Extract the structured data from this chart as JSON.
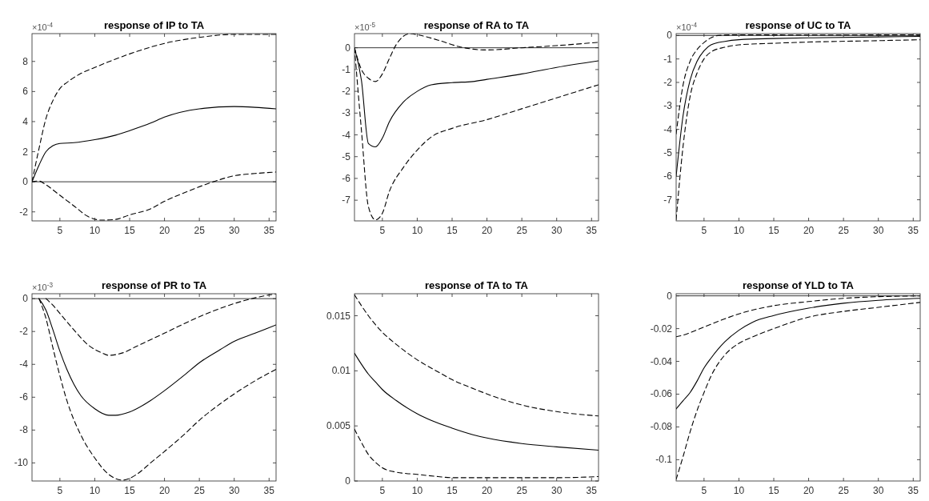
{
  "chart_data": [
    {
      "type": "line",
      "title": "response of IP to TA",
      "annotations": [
        "×10$^{-4}$"
      ],
      "xlim": [
        1,
        36
      ],
      "xticks": [
        5,
        10,
        15,
        20,
        25,
        30,
        35
      ],
      "ylim": [
        -2.6,
        9.85
      ],
      "yticks": [
        -2,
        0,
        2,
        4,
        6,
        8
      ],
      "ref_lines": [
        {
          "axis": "y",
          "value": 0,
          "color": "#000000",
          "line_style": "solid"
        }
      ],
      "series": [
        {
          "color": "#000000",
          "line_style": "solid",
          "x": [
            1,
            2,
            3,
            4,
            5,
            7,
            10,
            13,
            15,
            18,
            20,
            25,
            30,
            33,
            36
          ],
          "values": [
            0,
            1.1,
            2.0,
            2.4,
            2.55,
            2.6,
            2.8,
            3.1,
            3.4,
            3.9,
            4.3,
            4.85,
            5.0,
            4.95,
            4.85
          ]
        },
        {
          "color": "#000000",
          "line_style": "dashed",
          "x": [
            1,
            2,
            3,
            4,
            5,
            6,
            8,
            10,
            15,
            20,
            25,
            30,
            36
          ],
          "values": [
            0,
            2.2,
            4.2,
            5.4,
            6.2,
            6.6,
            7.2,
            7.6,
            8.5,
            9.2,
            9.6,
            9.8,
            9.8
          ]
        },
        {
          "color": "#000000",
          "line_style": "dashed",
          "x": [
            1,
            2,
            3,
            5,
            7,
            9,
            11,
            13,
            15,
            18,
            20,
            23,
            27,
            30,
            33,
            36
          ],
          "values": [
            0,
            0.05,
            -0.2,
            -0.9,
            -1.6,
            -2.3,
            -2.55,
            -2.5,
            -2.2,
            -1.8,
            -1.3,
            -0.7,
            0,
            0.4,
            0.55,
            0.65
          ]
        }
      ]
    },
    {
      "type": "line",
      "title": "response of RA to TA",
      "annotations": [
        "×10$^{-5}$"
      ],
      "xlim": [
        1,
        36
      ],
      "xticks": [
        5,
        10,
        15,
        20,
        25,
        30,
        35
      ],
      "ylim": [
        -7.95,
        0.65
      ],
      "yticks": [
        -7,
        -6,
        -5,
        -4,
        -3,
        -2,
        -1,
        0
      ],
      "ref_lines": [
        {
          "axis": "y",
          "value": 0,
          "color": "#000000",
          "line_style": "solid"
        }
      ],
      "series": [
        {
          "color": "#000000",
          "line_style": "solid",
          "x": [
            1,
            2,
            3,
            4,
            5,
            6,
            8,
            10,
            12,
            15,
            18,
            20,
            25,
            30,
            36
          ],
          "values": [
            0,
            -1.5,
            -4.4,
            -4.55,
            -4.15,
            -3.4,
            -2.5,
            -2.0,
            -1.7,
            -1.6,
            -1.55,
            -1.45,
            -1.2,
            -0.9,
            -0.6
          ]
        },
        {
          "color": "#000000",
          "line_style": "dashed",
          "x": [
            1,
            2,
            3,
            4,
            5,
            6,
            7,
            9,
            10,
            13,
            16,
            20,
            25,
            30,
            36
          ],
          "values": [
            0,
            -1.0,
            -1.4,
            -1.55,
            -1.2,
            -0.5,
            0.15,
            0.65,
            0.6,
            0.35,
            0.05,
            -0.1,
            0,
            0.1,
            0.25
          ]
        },
        {
          "color": "#000000",
          "line_style": "dashed",
          "x": [
            1,
            2,
            3,
            4,
            5,
            6,
            8,
            10,
            12,
            15,
            20,
            25,
            30,
            36
          ],
          "values": [
            0,
            -3.8,
            -7.3,
            -7.9,
            -7.6,
            -6.6,
            -5.5,
            -4.7,
            -4.1,
            -3.7,
            -3.3,
            -2.8,
            -2.3,
            -1.7
          ]
        }
      ]
    },
    {
      "type": "line",
      "title": "response of UC to TA",
      "annotations": [
        "×10$^{-4}$"
      ],
      "xlim": [
        1,
        36
      ],
      "xticks": [
        5,
        10,
        15,
        20,
        25,
        30,
        35
      ],
      "ylim": [
        -7.9,
        0.08
      ],
      "yticks": [
        -7,
        -6,
        -5,
        -4,
        -3,
        -2,
        -1,
        0
      ],
      "ref_lines": [
        {
          "axis": "y",
          "value": 0,
          "color": "#000000",
          "line_style": "solid"
        }
      ],
      "series": [
        {
          "color": "#000000",
          "line_style": "solid",
          "x": [
            1,
            2,
            3,
            4,
            5,
            6,
            8,
            10,
            15,
            20,
            30,
            36
          ],
          "values": [
            -6.0,
            -3.4,
            -1.9,
            -1.1,
            -0.65,
            -0.4,
            -0.25,
            -0.18,
            -0.13,
            -0.1,
            -0.06,
            -0.04
          ]
        },
        {
          "color": "#000000",
          "line_style": "dashed",
          "x": [
            1,
            2,
            3,
            4,
            5,
            6,
            7,
            10,
            20,
            36
          ],
          "values": [
            -4.2,
            -2.1,
            -1.1,
            -0.6,
            -0.3,
            -0.1,
            0.0,
            0.03,
            0.02,
            0.03
          ]
        },
        {
          "color": "#000000",
          "line_style": "dashed",
          "x": [
            1,
            2,
            3,
            4,
            5,
            6,
            8,
            10,
            15,
            20,
            30,
            36
          ],
          "values": [
            -7.85,
            -4.7,
            -2.6,
            -1.6,
            -1.0,
            -0.7,
            -0.5,
            -0.4,
            -0.33,
            -0.28,
            -0.22,
            -0.18
          ]
        }
      ]
    },
    {
      "type": "line",
      "title": "response of PR to TA",
      "annotations": [
        "×10$^{-3}$"
      ],
      "xlim": [
        1,
        36
      ],
      "xticks": [
        5,
        10,
        15,
        20,
        25,
        30,
        35
      ],
      "ylim": [
        -11.1,
        0.3
      ],
      "yticks": [
        -10,
        -8,
        -6,
        -4,
        -2,
        0
      ],
      "ref_lines": [
        {
          "axis": "y",
          "value": 0,
          "color": "#000000",
          "line_style": "solid"
        }
      ],
      "series": [
        {
          "color": "#000000",
          "line_style": "solid",
          "x": [
            2,
            3,
            4,
            5,
            6,
            7,
            8,
            10,
            12,
            13,
            15,
            18,
            20,
            23,
            25,
            28,
            30,
            33,
            36
          ],
          "values": [
            0,
            -0.7,
            -1.9,
            -3.2,
            -4.3,
            -5.2,
            -5.9,
            -6.7,
            -7.1,
            -7.1,
            -6.9,
            -6.2,
            -5.6,
            -4.6,
            -3.9,
            -3.1,
            -2.6,
            -2.1,
            -1.6
          ]
        },
        {
          "color": "#000000",
          "line_style": "dashed",
          "x": [
            3,
            4,
            5,
            7,
            9,
            11,
            12,
            14,
            16,
            18,
            20,
            25,
            30,
            33,
            36
          ],
          "values": [
            0,
            -0.4,
            -0.9,
            -1.9,
            -2.8,
            -3.3,
            -3.45,
            -3.3,
            -2.9,
            -2.5,
            -2.1,
            -1.1,
            -0.3,
            0.05,
            0.3
          ]
        },
        {
          "color": "#000000",
          "line_style": "dashed",
          "x": [
            2,
            3,
            4,
            5,
            6,
            8,
            10,
            12,
            14,
            16,
            18,
            20,
            23,
            25,
            28,
            30,
            33,
            36
          ],
          "values": [
            0,
            -1.2,
            -3.0,
            -4.7,
            -6.2,
            -8.3,
            -9.7,
            -10.7,
            -11.05,
            -10.7,
            -10.0,
            -9.3,
            -8.2,
            -7.4,
            -6.4,
            -5.8,
            -5.0,
            -4.3
          ]
        }
      ]
    },
    {
      "type": "line",
      "title": "response of TA to TA",
      "xlim": [
        1,
        36
      ],
      "xticks": [
        5,
        10,
        15,
        20,
        25,
        30,
        35
      ],
      "ylim": [
        0,
        0.017
      ],
      "yticks": [
        0,
        0.005,
        0.01,
        0.015
      ],
      "series": [
        {
          "color": "#000000",
          "line_style": "solid",
          "x": [
            1,
            2,
            3,
            4,
            5,
            7,
            10,
            12,
            15,
            18,
            20,
            25,
            30,
            36
          ],
          "values": [
            0.0116,
            0.0106,
            0.0097,
            0.009,
            0.0083,
            0.0073,
            0.0061,
            0.0055,
            0.0048,
            0.0042,
            0.0039,
            0.0034,
            0.0031,
            0.0028
          ]
        },
        {
          "color": "#000000",
          "line_style": "dashed",
          "x": [
            1,
            3,
            5,
            7,
            10,
            13,
            15,
            18,
            20,
            25,
            30,
            36
          ],
          "values": [
            0.0169,
            0.015,
            0.0135,
            0.0124,
            0.011,
            0.0099,
            0.0092,
            0.0084,
            0.0079,
            0.0069,
            0.0063,
            0.0059
          ]
        },
        {
          "color": "#000000",
          "line_style": "dashed",
          "x": [
            1,
            2,
            3,
            4,
            5,
            7,
            10,
            13,
            15,
            20,
            25,
            30,
            36
          ],
          "values": [
            0.0047,
            0.0035,
            0.0024,
            0.0017,
            0.0012,
            0.0008,
            0.0006,
            0.0004,
            0.0003,
            0.0003,
            0.0003,
            0.0003,
            0.0004
          ]
        }
      ]
    },
    {
      "type": "line",
      "title": "response of YLD to TA",
      "xlim": [
        1,
        36
      ],
      "xticks": [
        5,
        10,
        15,
        20,
        25,
        30,
        35
      ],
      "ylim": [
        -0.113,
        0.0013
      ],
      "yticks": [
        -0.1,
        -0.08,
        -0.06,
        -0.04,
        -0.02,
        0
      ],
      "ref_lines": [
        {
          "axis": "y",
          "value": 0,
          "color": "#000000",
          "line_style": "solid"
        }
      ],
      "series": [
        {
          "color": "#000000",
          "line_style": "solid",
          "x": [
            1,
            2,
            3,
            4,
            5,
            6,
            8,
            10,
            12,
            15,
            20,
            25,
            30,
            36
          ],
          "values": [
            -0.069,
            -0.064,
            -0.059,
            -0.052,
            -0.044,
            -0.038,
            -0.028,
            -0.021,
            -0.016,
            -0.012,
            -0.0075,
            -0.0045,
            -0.0027,
            -0.0015
          ]
        },
        {
          "color": "#000000",
          "line_style": "dashed",
          "x": [
            1,
            2,
            3,
            5,
            8,
            10,
            15,
            20,
            25,
            30,
            36
          ],
          "values": [
            -0.025,
            -0.024,
            -0.0225,
            -0.019,
            -0.014,
            -0.011,
            -0.006,
            -0.0035,
            -0.0015,
            -0.0005,
            0
          ]
        },
        {
          "color": "#000000",
          "line_style": "dashed",
          "x": [
            1,
            2,
            3,
            4,
            5,
            6,
            8,
            10,
            12,
            15,
            20,
            25,
            30,
            36
          ],
          "values": [
            -0.112,
            -0.098,
            -0.083,
            -0.07,
            -0.059,
            -0.049,
            -0.036,
            -0.029,
            -0.025,
            -0.02,
            -0.013,
            -0.0095,
            -0.007,
            -0.004
          ]
        }
      ]
    }
  ]
}
